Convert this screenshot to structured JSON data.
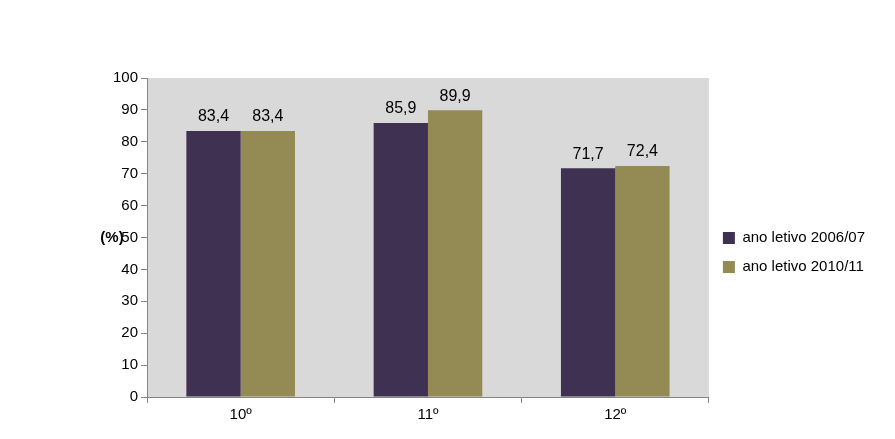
{
  "chart_data": {
    "type": "bar",
    "categories": [
      "10º",
      "11º",
      "12º"
    ],
    "series": [
      {
        "name": "ano letivo 2006/07",
        "color": "#3f3151",
        "values": [
          83.4,
          85.9,
          71.7
        ],
        "value_labels": [
          "83,4",
          "85,9",
          "71,7"
        ]
      },
      {
        "name": "ano letivo 2010/11",
        "color": "#948a54",
        "values": [
          83.4,
          89.9,
          72.4
        ],
        "value_labels": [
          "83,4",
          "89,9",
          "72,4"
        ]
      }
    ],
    "ylabel": "(%)",
    "ylim": [
      0,
      100
    ],
    "yticks": [
      0,
      10,
      20,
      30,
      40,
      50,
      60,
      70,
      80,
      90,
      100
    ],
    "grid": false,
    "legend": "right",
    "data_labels": true
  }
}
